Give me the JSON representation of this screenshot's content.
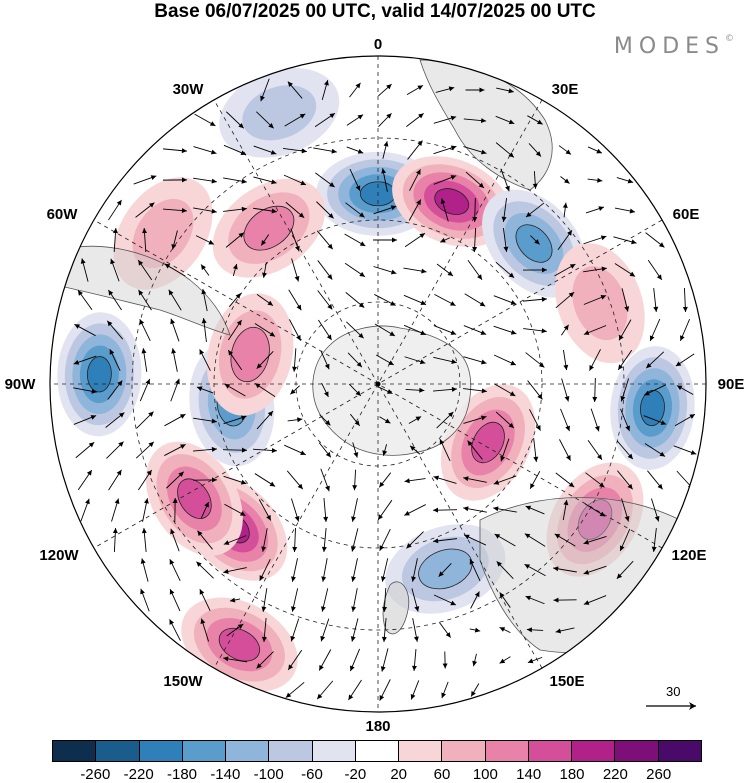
{
  "title": "Base 06/07/2025 00 UTC, valid 14/07/2025 00 UTC",
  "brand": "MODES",
  "brand_mark": "©",
  "longitude_labels": [
    "0",
    "30E",
    "60E",
    "90E",
    "120E",
    "150E",
    "180",
    "150W",
    "120W",
    "90W",
    "60W",
    "30W"
  ],
  "reference_vector": {
    "value": "30"
  },
  "colorbar": {
    "ticks": [
      "-260",
      "-220",
      "-180",
      "-140",
      "-100",
      "-60",
      "-20",
      "20",
      "60",
      "100",
      "140",
      "180",
      "220",
      "260"
    ],
    "colors": [
      "#0d2e4d",
      "#1a5c8c",
      "#2f7fb8",
      "#5a9ccc",
      "#8fb5db",
      "#bcc8e2",
      "#e2e3f0",
      "#ffffff",
      "#f8d6d8",
      "#f0b0bc",
      "#e882a8",
      "#d44e9a",
      "#b02189",
      "#7e0f79",
      "#4a0a6a"
    ]
  },
  "anomalies": [
    {
      "name": "neg",
      "lon": 0,
      "colat": 0.58,
      "level": -180
    },
    {
      "name": "pos",
      "lon": 22,
      "colat": 0.6,
      "level": 180
    },
    {
      "name": "neg",
      "lon": 48,
      "colat": 0.64,
      "level": -140
    },
    {
      "name": "pos",
      "lon": 70,
      "colat": 0.72,
      "level": 60
    },
    {
      "name": "neg",
      "lon": 95,
      "colat": 0.84,
      "level": -180
    },
    {
      "name": "pos",
      "lon": 118,
      "colat": 0.38,
      "level": 140
    },
    {
      "name": "pos",
      "lon": 122,
      "colat": 0.78,
      "level": 140
    },
    {
      "name": "neg",
      "lon": 160,
      "colat": 0.6,
      "level": -100
    },
    {
      "name": "pos",
      "lon": 208,
      "colat": 0.9,
      "level": 140
    },
    {
      "name": "pos",
      "lon": 225,
      "colat": 0.62,
      "level": 180
    },
    {
      "name": "pos",
      "lon": 238,
      "colat": 0.66,
      "level": 140
    },
    {
      "name": "neg",
      "lon": 262,
      "colat": 0.45,
      "level": -140
    },
    {
      "name": "neg",
      "lon": 272,
      "colat": 0.85,
      "level": -180
    },
    {
      "name": "pos",
      "lon": 283,
      "colat": 0.4,
      "level": 100
    },
    {
      "name": "pos",
      "lon": 305,
      "colat": 0.8,
      "level": 60
    },
    {
      "name": "pos",
      "lon": 325,
      "colat": 0.58,
      "level": 100
    },
    {
      "name": "neg",
      "lon": 340,
      "colat": 0.88,
      "level": -60
    }
  ]
}
